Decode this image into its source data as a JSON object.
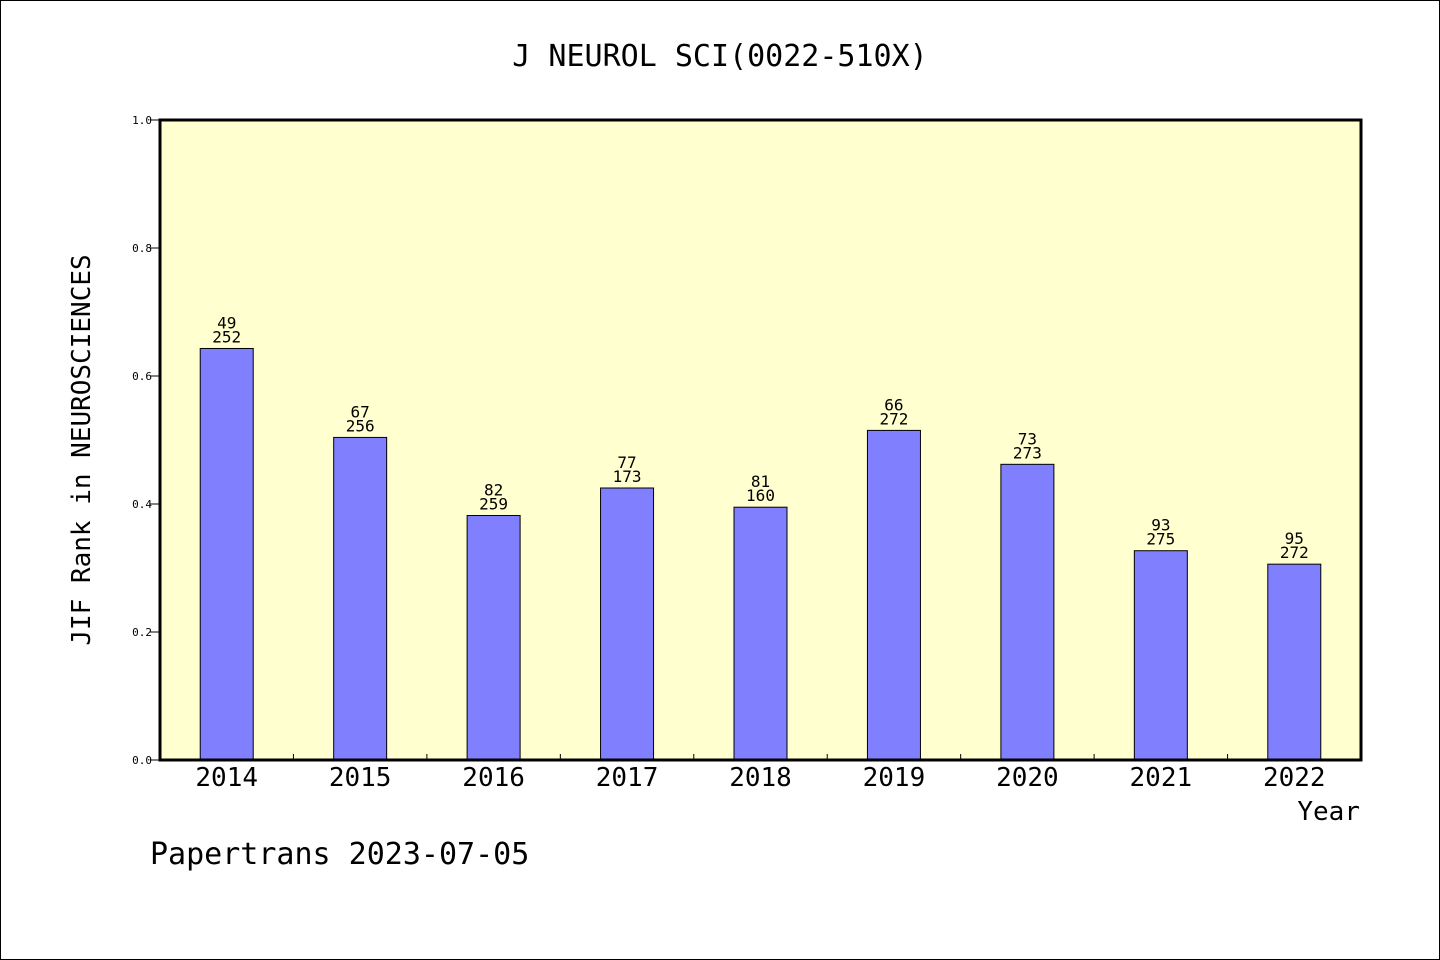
{
  "chart_data": {
    "type": "bar",
    "title": "J NEUROL SCI(0022-510X)",
    "xlabel": "Year",
    "ylabel": "JIF Rank in NEUROSCIENCES",
    "ylim": [
      0,
      1.0
    ],
    "yticks": [
      "0.0",
      "0.2",
      "0.4",
      "0.6",
      "0.8",
      "1.0"
    ],
    "categories": [
      "2014",
      "2015",
      "2016",
      "2017",
      "2018",
      "2019",
      "2020",
      "2021",
      "2022"
    ],
    "values": [
      0.643,
      0.504,
      0.382,
      0.425,
      0.395,
      0.515,
      0.462,
      0.327,
      0.306
    ],
    "rank_labels": [
      "49",
      "67",
      "82",
      "77",
      "81",
      "66",
      "73",
      "93",
      "95"
    ],
    "total_labels": [
      "252",
      "256",
      "259",
      "173",
      "160",
      "272",
      "273",
      "275",
      "272"
    ],
    "grid": false,
    "colors": {
      "plot_background": "#ffffd0",
      "bar_fill": "#8080ff",
      "bar_stroke": "#000000"
    }
  },
  "footer": {
    "credit": "Papertrans 2023-07-05"
  }
}
